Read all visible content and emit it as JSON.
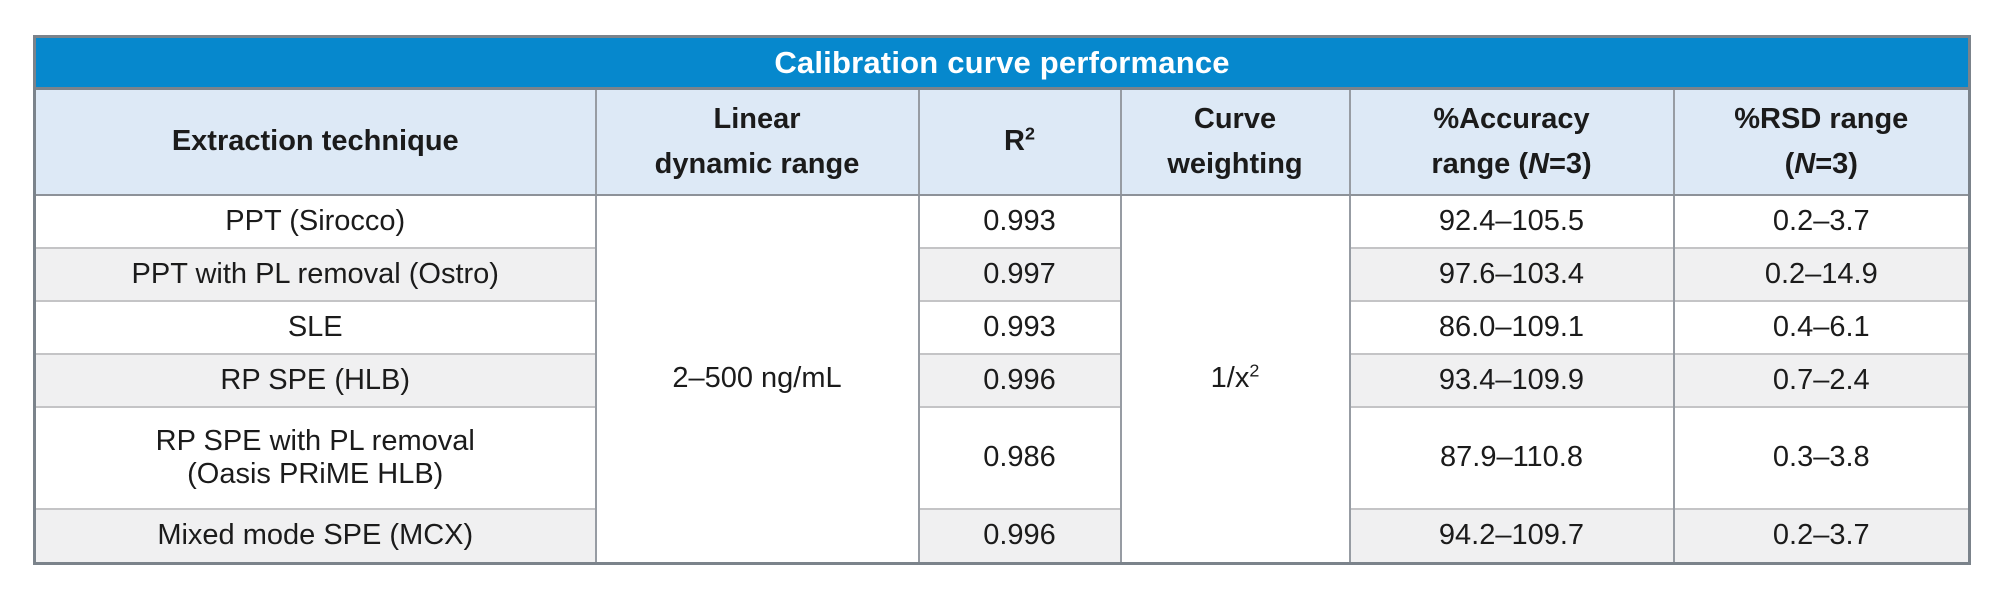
{
  "table": {
    "title": "Calibration curve performance",
    "headers": {
      "extraction": "Extraction technique",
      "linear_line1": "Linear",
      "linear_line2": "dynamic range",
      "r2_base": "R",
      "r2_sup": "2",
      "weighting_line1": "Curve",
      "weighting_line2": "weighting",
      "accuracy_line1": "%Accuracy",
      "accuracy_line2_pre": "range (",
      "accuracy_n": "N",
      "accuracy_line2_post": "=3)",
      "rsd_line1": "%RSD range",
      "rsd_line2_pre": "(",
      "rsd_n": "N",
      "rsd_line2_post": "=3)"
    },
    "merged": {
      "linear_dynamic_range": "2–500 ng/mL",
      "curve_weighting_base": "1/x",
      "curve_weighting_sup": "2"
    },
    "rows": [
      {
        "technique": "PPT (Sirocco)",
        "r2": "0.993",
        "accuracy": "92.4–105.5",
        "rsd": "0.2–3.7"
      },
      {
        "technique": "PPT with PL removal (Ostro)",
        "r2": "0.997",
        "accuracy": "97.6–103.4",
        "rsd": "0.2–14.9"
      },
      {
        "technique": "SLE",
        "r2": "0.993",
        "accuracy": "86.0–109.1",
        "rsd": "0.4–6.1"
      },
      {
        "technique": "RP SPE (HLB)",
        "r2": "0.996",
        "accuracy": "93.4–109.9",
        "rsd": "0.7–2.4"
      },
      {
        "technique_line1": "RP SPE with PL removal",
        "technique_line2": "(Oasis PRiME HLB)",
        "r2": "0.986",
        "accuracy": "87.9–110.8",
        "rsd": "0.3–3.8"
      },
      {
        "technique": "Mixed mode SPE (MCX)",
        "r2": "0.996",
        "accuracy": "94.2–109.7",
        "rsd": "0.2–3.7"
      }
    ]
  },
  "colors": {
    "title_bar_bg": "#0688cd",
    "title_text": "#ffffff",
    "header_bg": "#dde9f6",
    "row_stripe_bg": "#f0f0f1",
    "body_text": "#1b1b1b",
    "outer_border": "#7b838b",
    "column_border": "#979ca3",
    "row_border": "#c4c4c6"
  }
}
